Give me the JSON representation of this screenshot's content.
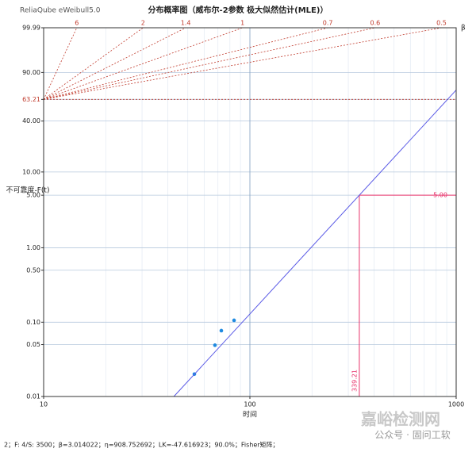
{
  "app_name": "ReliaQube eWeibull5.0",
  "chart_data": {
    "type": "weibull",
    "title": "分布概率图（威布尔-2参数 极大似然估计(MLE)）",
    "xlabel": "时间",
    "ylabel": "不可靠度-F(t)",
    "x_scale": "log",
    "y_scale": "weibull",
    "xlim": [
      10,
      1000
    ],
    "ylim": [
      0.01,
      99.99
    ],
    "xticks": [
      10,
      100,
      1000
    ],
    "yticks": [
      99.99,
      {
        "value": 90,
        "label": "90.00"
      },
      63.21,
      {
        "value": 40,
        "label": "40.00"
      },
      {
        "value": 10,
        "label": "10.00"
      },
      {
        "value": 5,
        "label": "5.00"
      },
      {
        "value": 1,
        "label": "1.00"
      },
      {
        "value": 0.5,
        "label": "0.50"
      },
      {
        "value": 0.1,
        "label": "0.10"
      },
      0.05,
      0.01
    ],
    "grid": true,
    "series": [
      {
        "kind": "points",
        "color": "#1f8ae0",
        "x": [
          53.8,
          67.7,
          72.7,
          83.8
        ],
        "values": [
          0.02,
          0.049,
          0.077,
          0.106
        ]
      },
      {
        "kind": "fit",
        "color": "#5a5ae6",
        "x": [
          42.8,
          1000
        ],
        "values": [
          0.01,
          73.7
        ]
      }
    ],
    "beta": {
      "ticks": [
        6,
        2,
        1.4,
        1,
        0.7,
        0.6,
        0.5
      ],
      "label": "β",
      "pivot": 63.21,
      "color": "#c0392b"
    },
    "reference": {
      "x": 339.21,
      "y": 5,
      "y_label": "5.00",
      "color": "#e8336b"
    }
  },
  "footer": "2；F: 4/S: 3500；β=3.014022；η=908.752692；LK=-47.616923；90.0%；Fisher矩阵；",
  "watermark": {
    "line1": "嘉峪检测网",
    "line2": "公众号 · 固问工软"
  }
}
